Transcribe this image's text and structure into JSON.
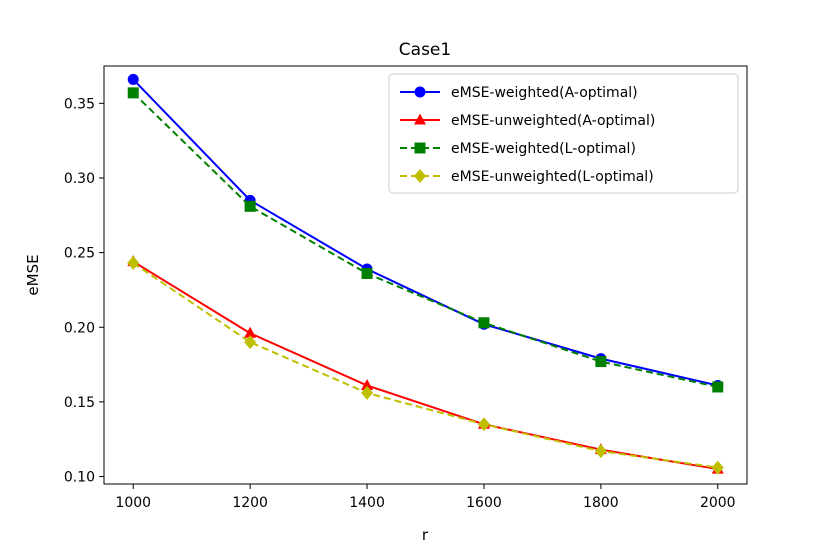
{
  "chart_data": {
    "type": "line",
    "title": "Case1",
    "xlabel": "r",
    "ylabel": "eMSE",
    "x": [
      1000,
      1200,
      1400,
      1600,
      1800,
      2000
    ],
    "xlim": [
      950,
      2050
    ],
    "ylim": [
      0.095,
      0.375
    ],
    "xticks": [
      "1000",
      "1200",
      "1400",
      "1600",
      "1800",
      "2000"
    ],
    "yticks": [
      "0.10",
      "0.15",
      "0.20",
      "0.25",
      "0.30",
      "0.35"
    ],
    "grid": false,
    "legend_position": "top-right",
    "series": [
      {
        "name": "eMSE-weighted(A-optimal)",
        "values": [
          0.366,
          0.285,
          0.239,
          0.202,
          0.179,
          0.161
        ],
        "color": "#0000ff",
        "marker": "circle",
        "line": "solid"
      },
      {
        "name": "eMSE-unweighted(A-optimal)",
        "values": [
          0.244,
          0.196,
          0.161,
          0.135,
          0.118,
          0.105
        ],
        "color": "#ff0000",
        "marker": "triangle",
        "line": "solid"
      },
      {
        "name": "eMSE-weighted(L-optimal)",
        "values": [
          0.357,
          0.281,
          0.236,
          0.203,
          0.177,
          0.16
        ],
        "color": "#008000",
        "marker": "square",
        "line": "dashed"
      },
      {
        "name": "eMSE-unweighted(L-optimal)",
        "values": [
          0.243,
          0.19,
          0.156,
          0.135,
          0.117,
          0.106
        ],
        "color": "#bfbf00",
        "marker": "diamond",
        "line": "dashed"
      }
    ]
  }
}
